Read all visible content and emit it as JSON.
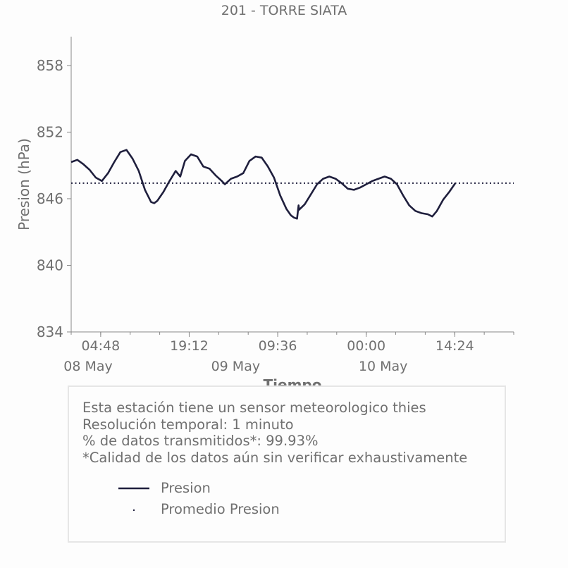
{
  "title": "201 - TORRE SIATA",
  "chart_data": {
    "type": "line",
    "title": "201 - TORRE SIATA",
    "xlabel": "Tiempo",
    "ylabel": "Presion (hPa)",
    "ylim": [
      834,
      860.6
    ],
    "yticks": [
      834,
      840,
      846,
      852,
      858
    ],
    "xlim": [
      "2025-05-08 00:00",
      "2025-05-11 00:00"
    ],
    "xticks": [
      {
        "label": "04:48",
        "t": "2025-05-08 04:48"
      },
      {
        "label": "19:12",
        "t": "2025-05-08 19:12"
      },
      {
        "label": "09:36",
        "t": "2025-05-09 09:36"
      },
      {
        "label": "00:00",
        "t": "2025-05-10 00:00"
      },
      {
        "label": "14:24",
        "t": "2025-05-10 14:24"
      }
    ],
    "date_labels": [
      {
        "label": "08 May",
        "t": "2025-05-08 00:00"
      },
      {
        "label": "09 May",
        "t": "2025-05-09 00:00"
      },
      {
        "label": "10 May",
        "t": "2025-05-10 00:00"
      }
    ],
    "grid": false,
    "series": [
      {
        "name": "Presion",
        "color": "#1f1f3d",
        "style": "solid",
        "points": [
          [
            "2025-05-08 00:00",
            849.3
          ],
          [
            "2025-05-08 01:00",
            849.5
          ],
          [
            "2025-05-08 02:00",
            849.1
          ],
          [
            "2025-05-08 03:00",
            848.6
          ],
          [
            "2025-05-08 04:00",
            847.9
          ],
          [
            "2025-05-08 05:00",
            847.6
          ],
          [
            "2025-05-08 06:00",
            848.3
          ],
          [
            "2025-05-08 07:00",
            849.3
          ],
          [
            "2025-05-08 08:00",
            850.2
          ],
          [
            "2025-05-08 09:00",
            850.4
          ],
          [
            "2025-05-08 10:00",
            849.6
          ],
          [
            "2025-05-08 11:00",
            848.5
          ],
          [
            "2025-05-08 12:00",
            846.8
          ],
          [
            "2025-05-08 13:00",
            845.7
          ],
          [
            "2025-05-08 13:30",
            845.6
          ],
          [
            "2025-05-08 14:00",
            845.8
          ],
          [
            "2025-05-08 15:00",
            846.6
          ],
          [
            "2025-05-08 16:00",
            847.6
          ],
          [
            "2025-05-08 17:00",
            848.5
          ],
          [
            "2025-05-08 17:45",
            848.0
          ],
          [
            "2025-05-08 18:30",
            849.4
          ],
          [
            "2025-05-08 19:30",
            850.0
          ],
          [
            "2025-05-08 20:30",
            849.8
          ],
          [
            "2025-05-08 21:30",
            848.9
          ],
          [
            "2025-05-08 22:30",
            848.7
          ],
          [
            "2025-05-08 23:30",
            848.1
          ],
          [
            "2025-05-09 00:30",
            847.6
          ],
          [
            "2025-05-09 01:00",
            847.3
          ],
          [
            "2025-05-09 02:00",
            847.8
          ],
          [
            "2025-05-09 03:00",
            848.0
          ],
          [
            "2025-05-09 04:00",
            848.3
          ],
          [
            "2025-05-09 05:00",
            849.4
          ],
          [
            "2025-05-09 06:00",
            849.8
          ],
          [
            "2025-05-09 07:00",
            849.7
          ],
          [
            "2025-05-09 08:00",
            848.9
          ],
          [
            "2025-05-09 09:00",
            847.9
          ],
          [
            "2025-05-09 10:00",
            846.3
          ],
          [
            "2025-05-09 11:00",
            845.1
          ],
          [
            "2025-05-09 11:45",
            844.5
          ],
          [
            "2025-05-09 12:15",
            844.3
          ],
          [
            "2025-05-09 12:45",
            844.2
          ],
          [
            "2025-05-09 13:00",
            845.4
          ],
          [
            "2025-05-09 13:05",
            845.0
          ],
          [
            "2025-05-09 14:00",
            845.5
          ],
          [
            "2025-05-09 15:00",
            846.4
          ],
          [
            "2025-05-09 16:00",
            847.3
          ],
          [
            "2025-05-09 17:00",
            847.8
          ],
          [
            "2025-05-09 18:00",
            848.0
          ],
          [
            "2025-05-09 19:00",
            847.8
          ],
          [
            "2025-05-09 20:00",
            847.4
          ],
          [
            "2025-05-09 21:00",
            846.9
          ],
          [
            "2025-05-09 22:00",
            846.8
          ],
          [
            "2025-05-09 23:00",
            847.0
          ],
          [
            "2025-05-10 00:00",
            847.3
          ],
          [
            "2025-05-10 01:00",
            847.6
          ],
          [
            "2025-05-10 02:00",
            847.8
          ],
          [
            "2025-05-10 03:00",
            848.0
          ],
          [
            "2025-05-10 04:00",
            847.8
          ],
          [
            "2025-05-10 05:00",
            847.3
          ],
          [
            "2025-05-10 06:00",
            846.3
          ],
          [
            "2025-05-10 07:00",
            845.4
          ],
          [
            "2025-05-10 08:00",
            844.9
          ],
          [
            "2025-05-10 09:00",
            844.7
          ],
          [
            "2025-05-10 10:00",
            844.6
          ],
          [
            "2025-05-10 10:45",
            844.4
          ],
          [
            "2025-05-10 11:30",
            844.9
          ],
          [
            "2025-05-10 12:30",
            845.9
          ],
          [
            "2025-05-10 13:30",
            846.6
          ],
          [
            "2025-05-10 14:30",
            847.4
          ]
        ]
      },
      {
        "name": "Promedio Presion",
        "color": "#1f1f3d",
        "style": "dotted",
        "constant": 847.4
      }
    ]
  },
  "info": {
    "line1": "Esta estación tiene un sensor meteorologico thies",
    "line2": "Resolución temporal: 1 minuto",
    "line3": "% de datos transmitidos*: 99.93%",
    "line4": "*Calidad de los datos aún sin verificar exhaustivamente"
  },
  "legend": {
    "item1": "Presion",
    "item2": "Promedio Presion"
  }
}
